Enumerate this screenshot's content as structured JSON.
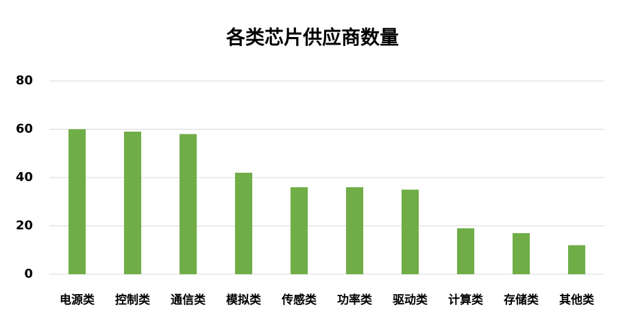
{
  "chart_data": {
    "type": "bar",
    "title": "各类芯片供应商数量",
    "categories": [
      "电源类",
      "控制类",
      "通信类",
      "模拟类",
      "传感类",
      "功率类",
      "驱动类",
      "计算类",
      "存储类",
      "其他类"
    ],
    "values": [
      60,
      59,
      58,
      42,
      36,
      36,
      35,
      19,
      17,
      12
    ],
    "color": "#70ad47",
    "ylim": [
      0,
      80
    ],
    "yticks": [
      0,
      20,
      40,
      60,
      80
    ],
    "grid": true
  }
}
